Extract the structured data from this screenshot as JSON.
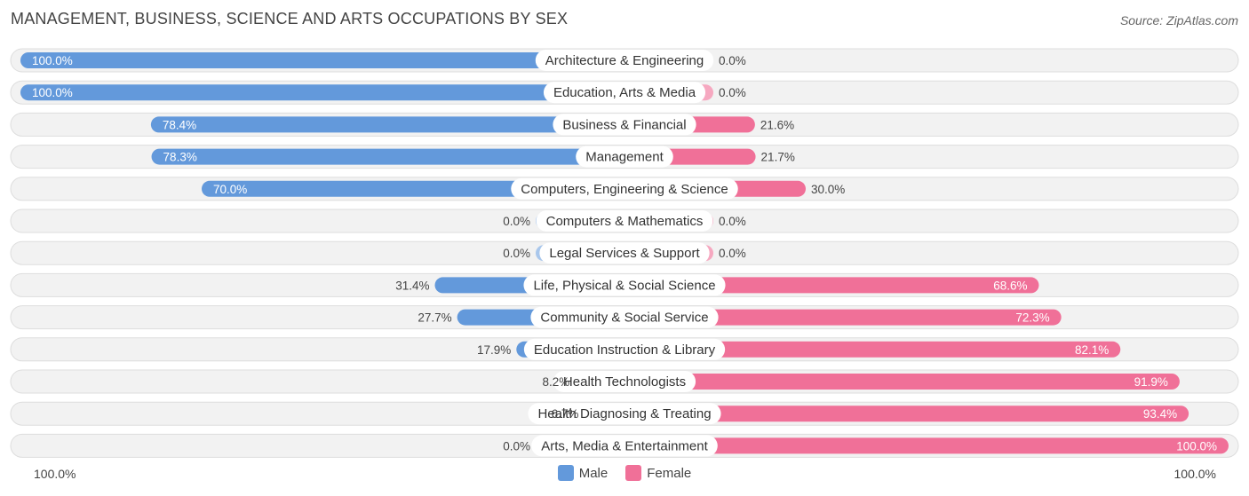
{
  "header": {
    "title": "MANAGEMENT, BUSINESS, SCIENCE AND ARTS OCCUPATIONS BY SEX",
    "source": "Source: ZipAtlas.com"
  },
  "colors": {
    "male_strong": "#6399db",
    "male_light": "#a9c7ec",
    "female_strong": "#f07098",
    "female_light": "#f6a8c0"
  },
  "legend": {
    "male": "Male",
    "female": "Female"
  },
  "axis": {
    "left": "100.0%",
    "right": "100.0%"
  },
  "chart_data": {
    "type": "bar",
    "orientation": "horizontal-diverging",
    "title": "MANAGEMENT, BUSINESS, SCIENCE AND ARTS OCCUPATIONS BY SEX",
    "xlim": [
      -100,
      100
    ],
    "categories": [
      "Architecture & Engineering",
      "Education, Arts & Media",
      "Business & Financial",
      "Management",
      "Computers, Engineering & Science",
      "Computers & Mathematics",
      "Legal Services & Support",
      "Life, Physical & Social Science",
      "Community & Social Service",
      "Education Instruction & Library",
      "Health Technologists",
      "Health Diagnosing & Treating",
      "Arts, Media & Entertainment"
    ],
    "series": [
      {
        "name": "Male",
        "values": [
          100.0,
          100.0,
          78.4,
          78.3,
          70.0,
          0.0,
          0.0,
          31.4,
          27.7,
          17.9,
          8.2,
          6.7,
          0.0
        ]
      },
      {
        "name": "Female",
        "values": [
          0.0,
          0.0,
          21.6,
          21.7,
          30.0,
          0.0,
          0.0,
          68.6,
          72.3,
          82.1,
          91.9,
          93.4,
          100.0
        ]
      }
    ],
    "value_labels": {
      "male": [
        "100.0%",
        "100.0%",
        "78.4%",
        "78.3%",
        "70.0%",
        "0.0%",
        "0.0%",
        "31.4%",
        "27.7%",
        "17.9%",
        "8.2%",
        "6.7%",
        "0.0%"
      ],
      "female": [
        "0.0%",
        "0.0%",
        "21.6%",
        "21.7%",
        "30.0%",
        "0.0%",
        "0.0%",
        "68.6%",
        "72.3%",
        "82.1%",
        "91.9%",
        "93.4%",
        "100.0%"
      ]
    }
  }
}
